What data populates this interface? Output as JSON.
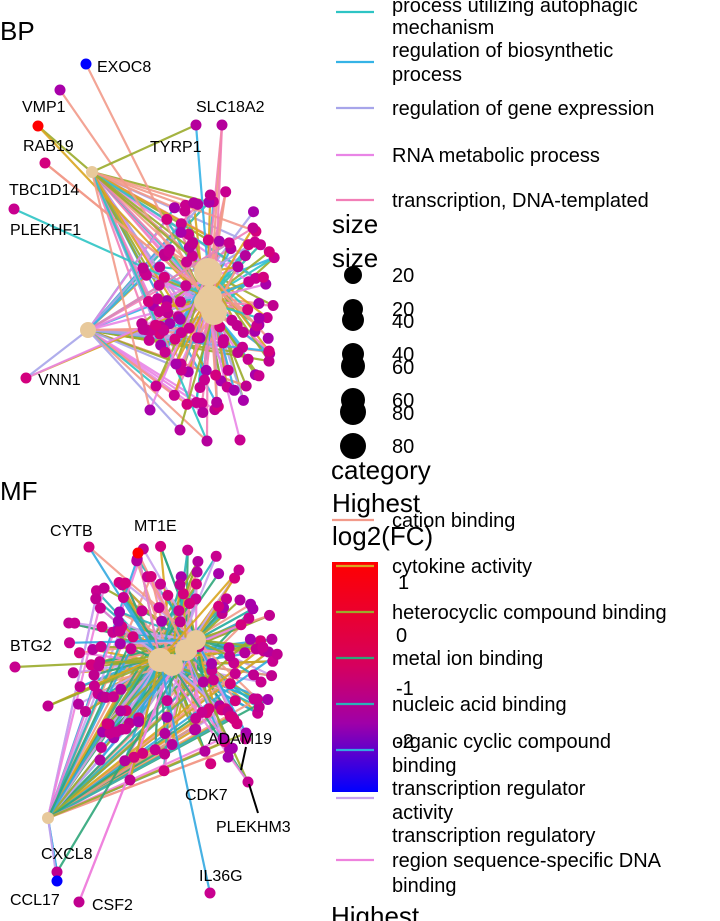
{
  "chart_data": [
    {
      "type": "network",
      "title": "BP",
      "labeled_genes": [
        "EXOC8",
        "VMP1",
        "RAB19",
        "TBC1D14",
        "PLEKHF1",
        "SLC18A2",
        "TYRP1",
        "VNN1"
      ],
      "category_legend": [
        {
          "label": "process utilizing autophagic mechanism",
          "color": "#2ec4c4"
        },
        {
          "label": "regulation of biosynthetic process",
          "color": "#35b3e6"
        },
        {
          "label": "regulation of gene expression",
          "color": "#a7a5ea"
        },
        {
          "label": "RNA metabolic process",
          "color": "#e985e6"
        },
        {
          "label": "transcription, DNA-templated",
          "color": "#f27fb7"
        }
      ],
      "size_legend": {
        "title": "size",
        "values": [
          20,
          40,
          60,
          80
        ]
      }
    },
    {
      "type": "network",
      "title": "MF",
      "labeled_genes": [
        "CYTB",
        "MT1E",
        "BTG2",
        "ADAM19",
        "CDK7",
        "PLEKHM3",
        "CXCL8",
        "IL36G",
        "CCL17",
        "CSF2"
      ],
      "category_legend_title": "category",
      "category_legend": [
        {
          "label": "cation binding",
          "color": "#f29a8a"
        },
        {
          "label": "cytokine activity",
          "color": "#d9a520"
        },
        {
          "label": "heterocyclic compound binding",
          "color": "#9aab2b"
        },
        {
          "label": "metal ion binding",
          "color": "#2fa67a"
        },
        {
          "label": "nucleic acid binding",
          "color": "#2bb2b8"
        },
        {
          "label": "organic cyclic compound binding",
          "color": "#33a8e0"
        },
        {
          "label": "transcription regulator activity",
          "color": "#c9a2ee"
        },
        {
          "label": "transcription regulatory region sequence-specific DNA binding",
          "color": "#ee82dd"
        }
      ],
      "color_legend": {
        "title": "Highest log2(FC)",
        "ticks": [
          "1",
          "0",
          "-1",
          "-2"
        ],
        "low": "#0000ff",
        "high": "#ff0000"
      }
    }
  ],
  "text": {
    "bp_legend": {
      "l1a": "process utilizing autophagic",
      "l1b": "mechanism",
      "l2a": "regulation of biosynthetic",
      "l2b": "process",
      "l3": "regulation of gene expression",
      "l4": "RNA metabolic process",
      "l5": "transcription, DNA-templated"
    },
    "mf_legend": {
      "l4": "metal ion binding",
      "l5": "nucleic acid binding",
      "l6a": "organic cyclic compound",
      "l6b": "binding",
      "l7a": "transcription regulator",
      "l7b": "activity",
      "l8a": "transcription regulatory",
      "l8b": "region sequence-specific DNA",
      "l8c": "binding"
    },
    "size_title_2": "size",
    "size_values_2": [
      "20",
      "40",
      "60",
      "80"
    ],
    "highest_title_2": "Highest",
    "colorbar_title_a": "Highest",
    "colorbar_title_b": "log2(FC)"
  }
}
